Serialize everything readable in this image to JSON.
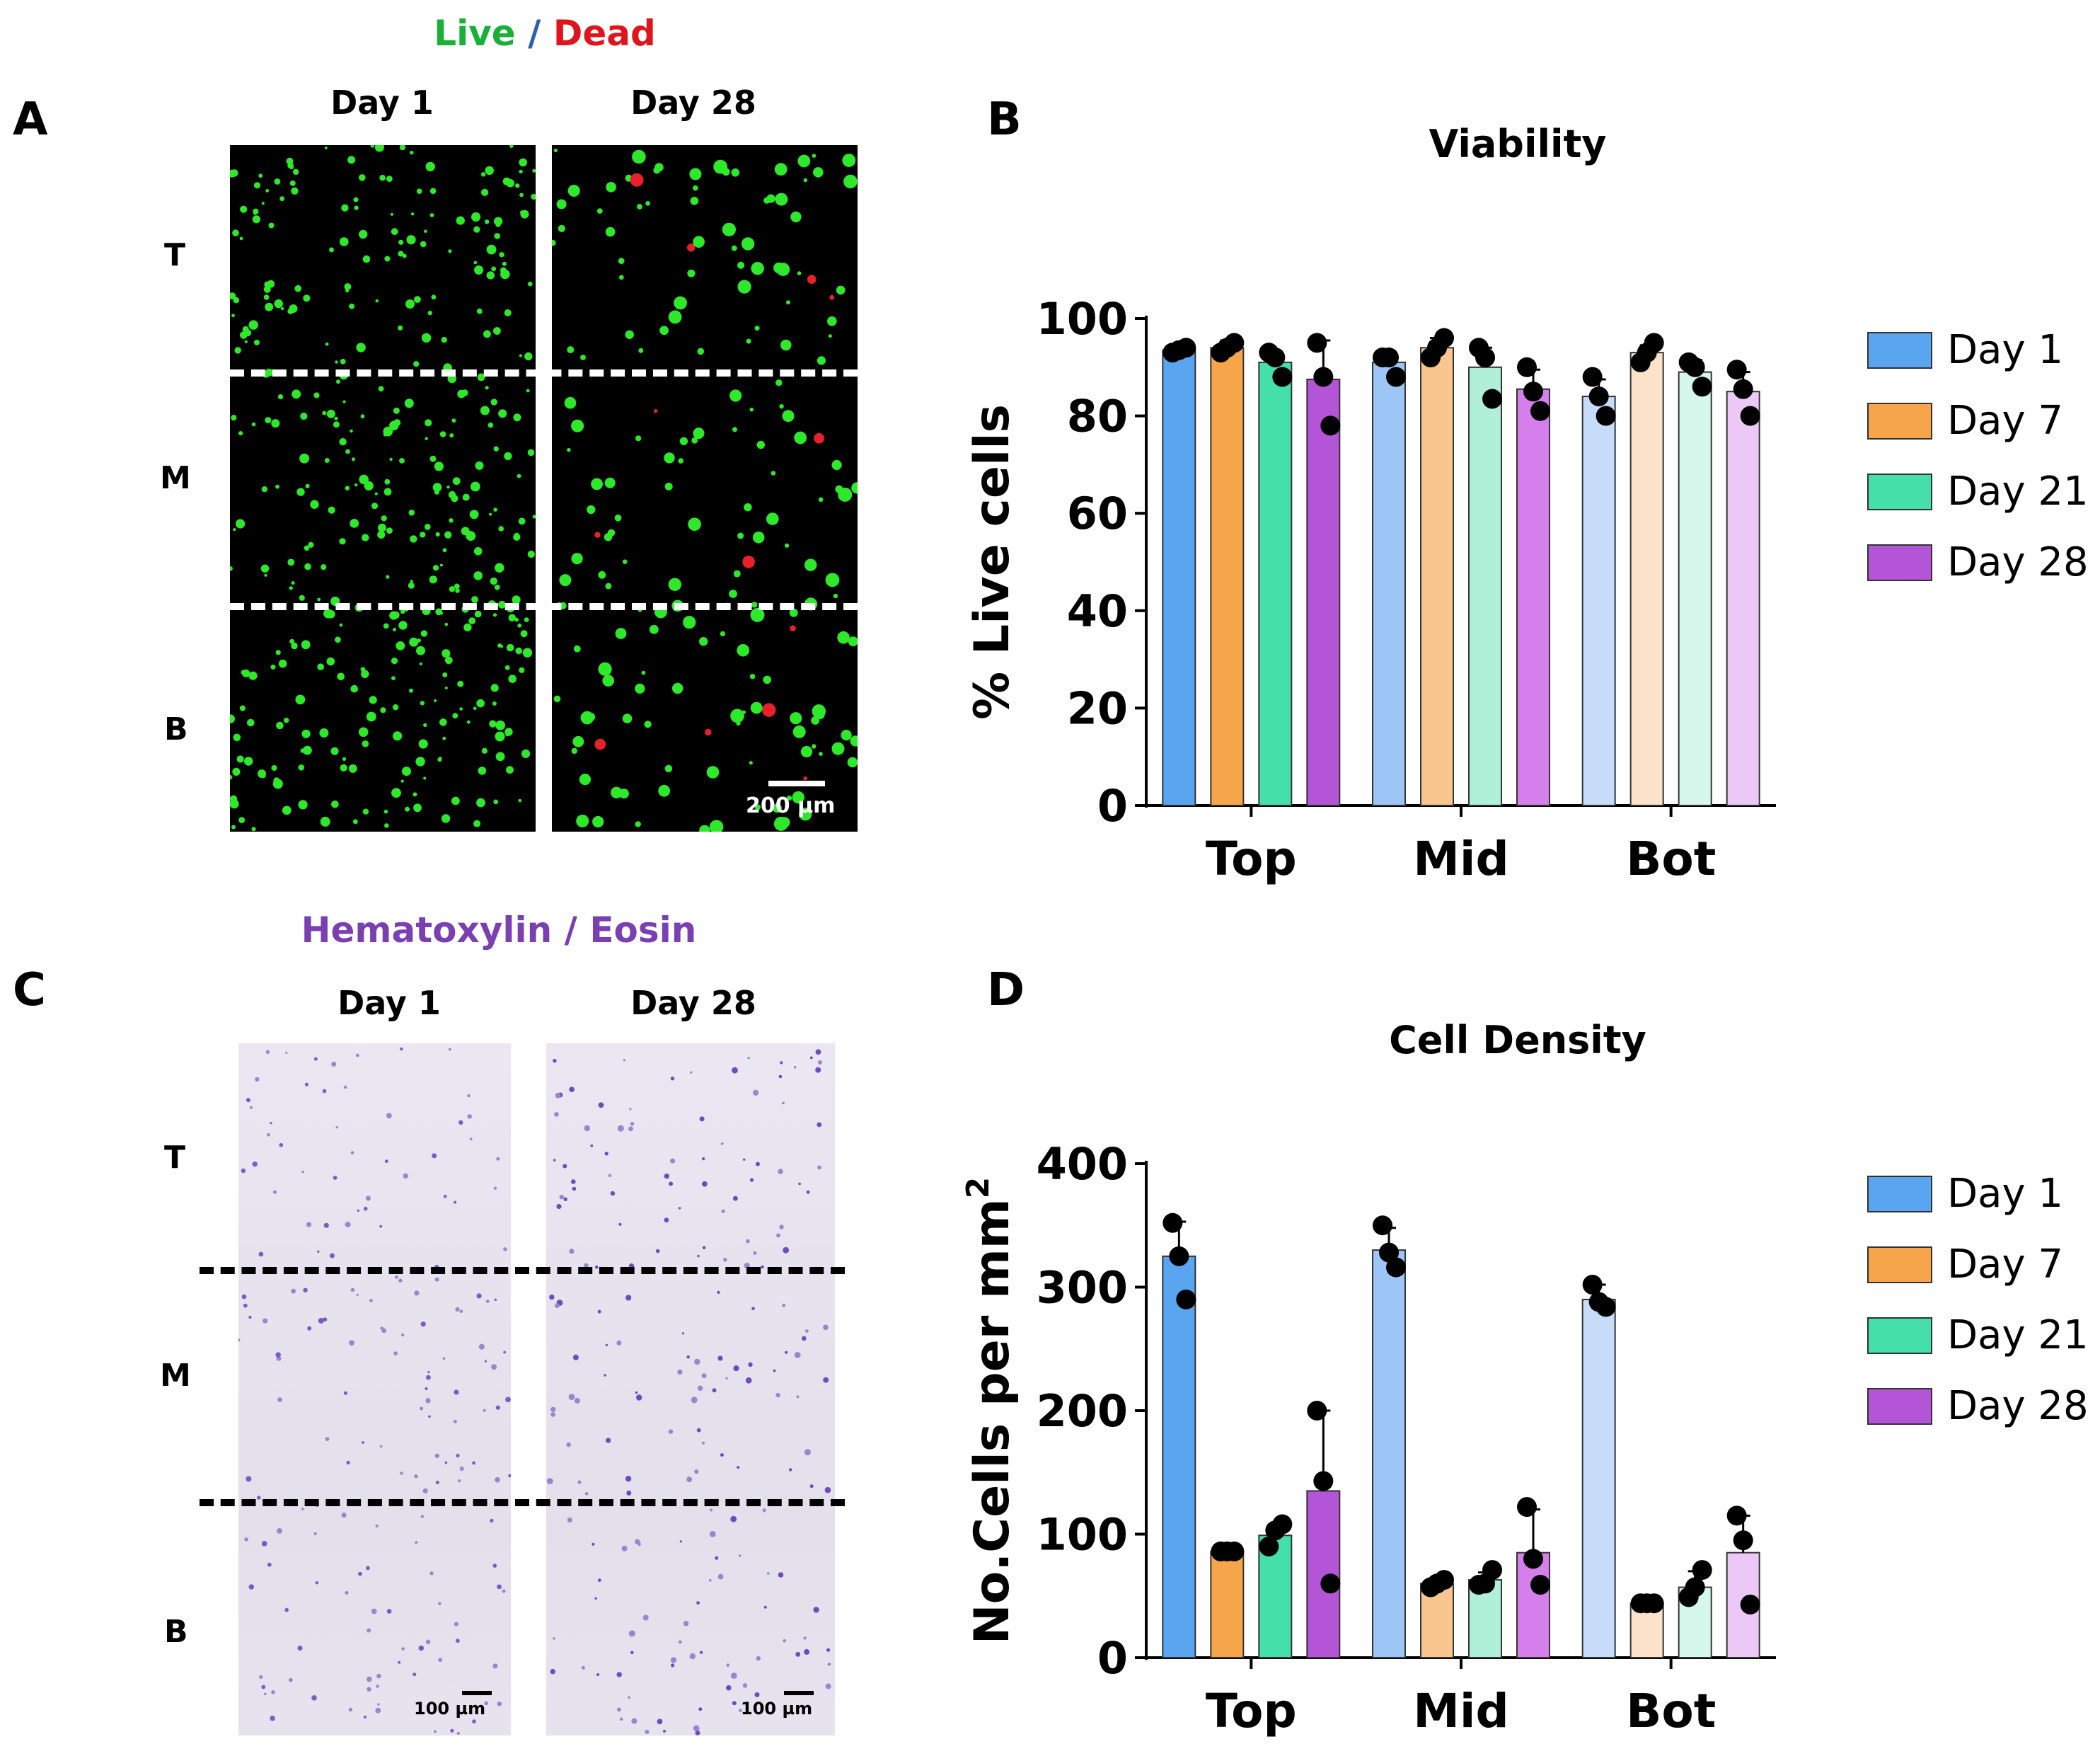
{
  "panels": {
    "A": {
      "label": "A",
      "title_live": "Live",
      "title_sep": "/",
      "title_dead": "Dead",
      "col_day1": "Day 1",
      "col_day28": "Day 28",
      "row_top": "T",
      "row_mid": "M",
      "row_bot": "B",
      "scalebar": "200 µm"
    },
    "B": {
      "label": "B"
    },
    "C": {
      "label": "C",
      "title": "Hematoxylin / Eosin",
      "col_day1": "Day 1",
      "col_day28": "Day 28",
      "row_top": "T",
      "row_mid": "M",
      "row_bot": "B",
      "scalebar_left": "100 µm",
      "scalebar_right": "100 µm"
    },
    "D": {
      "label": "D"
    }
  },
  "colors": {
    "live": "#18b036",
    "sep": "#2f5fb0",
    "dead": "#e0141c",
    "he": "#7a3fb0"
  },
  "chart_data": [
    {
      "type": "bar",
      "title": "Viability",
      "ylabel": "% Live cells",
      "xlabel": "",
      "ylim": [
        0,
        100
      ],
      "yticks": [
        "0",
        "20",
        "40",
        "60",
        "80",
        "100"
      ],
      "categories": [
        "Top",
        "Mid",
        "Bot"
      ],
      "legend_position": "right",
      "series": [
        {
          "name": "Day 1",
          "values": [
            93.5,
            91,
            84
          ],
          "errors": [
            0.7,
            1.5,
            3.5
          ],
          "points": [
            [
              93,
              94,
              93.5
            ],
            [
              92,
              88,
              92
            ],
            [
              88,
              80,
              84
            ]
          ]
        },
        {
          "name": "Day 7",
          "values": [
            94,
            94,
            93
          ],
          "errors": [
            1.5,
            2,
            1.5
          ],
          "points": [
            [
              93,
              95,
              94
            ],
            [
              92,
              96,
              94
            ],
            [
              91,
              95,
              93
            ]
          ]
        },
        {
          "name": "Day 21",
          "values": [
            91,
            90,
            89
          ],
          "errors": [
            2,
            4,
            2.5
          ],
          "points": [
            [
              93,
              88,
              92
            ],
            [
              94,
              83.5,
              92
            ],
            [
              91,
              86,
              90
            ]
          ]
        },
        {
          "name": "Day 28",
          "values": [
            87.5,
            85.5,
            85
          ],
          "errors": [
            8,
            4,
            4
          ],
          "points": [
            [
              95,
              78,
              88
            ],
            [
              90,
              81,
              85
            ],
            [
              89.5,
              80,
              85.5
            ]
          ]
        }
      ],
      "colors_top": [
        "#5aa5f0",
        "#f7a54b",
        "#45e0aa",
        "#b455d8"
      ],
      "colors_mid": [
        "#9dc5f5",
        "#f9c690",
        "#b0f0d8",
        "#d47fec"
      ],
      "colors_bot": [
        "#c6dcf8",
        "#fbe2c8",
        "#d6f7eb",
        "#ebc8f5"
      ]
    },
    {
      "type": "bar",
      "title": "Cell Density",
      "ylabel": "No.Cells per mm",
      "ylabel_sup": "2",
      "xlabel": "",
      "ylim": [
        0,
        400
      ],
      "yticks": [
        "0",
        "100",
        "200",
        "300",
        "400"
      ],
      "categories": [
        "Top",
        "Mid",
        "Bot"
      ],
      "legend_position": "right",
      "series": [
        {
          "name": "Day 1",
          "values": [
            325,
            330,
            290
          ],
          "errors": [
            28,
            18,
            12
          ],
          "points": [
            [
              352,
              290,
              325
            ],
            [
              350,
              316,
              328
            ],
            [
              302,
              284,
              288
            ]
          ]
        },
        {
          "name": "Day 7",
          "values": [
            86,
            60,
            44
          ],
          "errors": [
            1,
            3,
            1
          ],
          "points": [
            [
              86,
              86,
              86
            ],
            [
              57,
              63,
              60
            ],
            [
              44,
              44,
              44
            ]
          ]
        },
        {
          "name": "Day 21",
          "values": [
            99,
            63,
            57
          ],
          "errors": [
            8,
            6,
            13
          ],
          "points": [
            [
              90,
              108,
              103
            ],
            [
              59,
              71,
              60
            ],
            [
              49,
              71,
              57
            ]
          ]
        },
        {
          "name": "Day 28",
          "values": [
            135,
            85,
            85
          ],
          "errors": [
            65,
            35,
            30
          ],
          "points": [
            [
              200,
              60,
              143
            ],
            [
              122,
              59,
              80
            ],
            [
              115,
              43,
              95
            ]
          ]
        }
      ],
      "colors_top": [
        "#5aa5f0",
        "#f7a54b",
        "#45e0aa",
        "#b455d8"
      ],
      "colors_mid": [
        "#9dc5f5",
        "#f9c690",
        "#b0f0d8",
        "#d47fec"
      ],
      "colors_bot": [
        "#c6dcf8",
        "#fbe2c8",
        "#d6f7eb",
        "#ebc8f5"
      ]
    }
  ]
}
